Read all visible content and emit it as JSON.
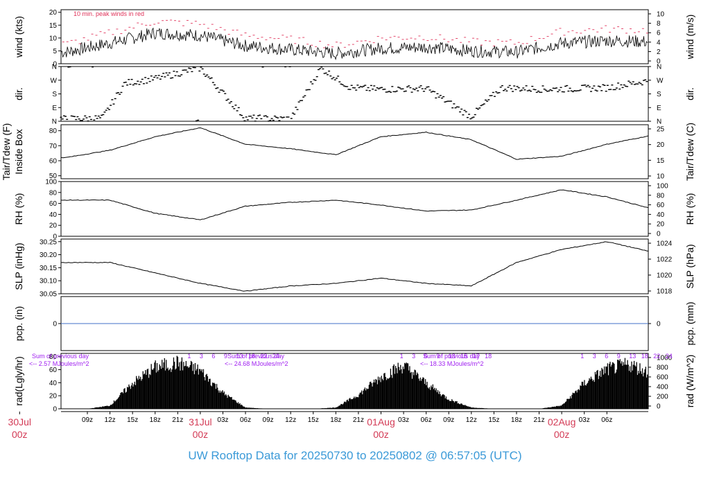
{
  "title": "UW Rooftop Data for 20250730  to  20250802 @ 06:57:05  (UTC)",
  "colors": {
    "trace": "#000000",
    "peak": "#e0335a",
    "date": "#d33a55",
    "sun": "#a020f0",
    "zero": "#3f6fc8",
    "title": "#3b9ad8"
  },
  "chart_data": [
    {
      "type": "line",
      "name": "wind",
      "ylabel_left": "wind (kts)",
      "ylabel_right": "wind (m/s)",
      "annotation": "10 min. peak winds in red",
      "left_ticks": [
        "0",
        "5",
        "10",
        "15",
        "20"
      ],
      "right_ticks": [
        "0",
        "2",
        "4",
        "6",
        "8",
        "10"
      ],
      "ylim": [
        0,
        21
      ],
      "x_hours": [
        0,
        6,
        12,
        18,
        24,
        30,
        36,
        42,
        48,
        54,
        60,
        66,
        72,
        78,
        84,
        90
      ],
      "values": [
        6,
        4.5,
        8,
        12,
        11,
        7,
        5.5,
        4,
        6,
        6.5,
        5,
        4.5,
        8,
        9,
        8.5,
        6
      ],
      "peak_values": [
        9,
        7.5,
        12,
        16.5,
        15.5,
        11,
        9.5,
        7,
        10,
        10.5,
        8.5,
        8,
        12.5,
        13.5,
        13,
        9
      ]
    },
    {
      "type": "scatter",
      "name": "dir",
      "ylabel_left": "dir.",
      "ylabel_right": "dir.",
      "left_ticks": [
        "N",
        "E",
        "S",
        "W",
        "N"
      ],
      "right_ticks": [
        "N",
        "E",
        "S",
        "W",
        "N"
      ],
      "ylim": [
        0,
        360
      ],
      "x_hours": [
        0,
        6,
        11,
        14,
        18,
        24,
        30,
        36,
        40,
        44,
        48,
        54,
        60,
        64,
        70,
        78,
        84,
        88
      ],
      "values": [
        20,
        15,
        20,
        250,
        280,
        350,
        20,
        15,
        350,
        220,
        210,
        215,
        30,
        220,
        210,
        220,
        270,
        20
      ]
    },
    {
      "type": "line",
      "name": "temperature",
      "ylabel_left": "Tair/Tdew (F)",
      "ylabel_left2": "Inside Box",
      "ylabel_right": "Tair/Tdew (C)",
      "left_ticks": [
        "50",
        "60",
        "70",
        "80"
      ],
      "right_ticks": [
        "10",
        "15",
        "20",
        "25"
      ],
      "ylim": [
        48,
        84
      ],
      "x_hours": [
        0,
        6,
        12,
        18,
        24,
        30,
        36,
        42,
        48,
        54,
        60,
        66,
        72,
        78,
        84,
        90
      ],
      "values": [
        66,
        62,
        67,
        76,
        82,
        71,
        68,
        64,
        76,
        79,
        74,
        61,
        63,
        71,
        77,
        69
      ]
    },
    {
      "type": "line",
      "name": "rh",
      "ylabel_left": "RH (%)",
      "ylabel_right": "RH (%)",
      "left_ticks": [
        "0",
        "20",
        "40",
        "60",
        "80",
        "100"
      ],
      "right_ticks": [
        "0",
        "20",
        "40",
        "60",
        "80",
        "100"
      ],
      "ylim": [
        0,
        100
      ],
      "x_hours": [
        0,
        6,
        12,
        18,
        24,
        30,
        36,
        42,
        48,
        54,
        60,
        66,
        72,
        78,
        84,
        90
      ],
      "values": [
        60,
        66,
        66,
        42,
        30,
        55,
        62,
        66,
        57,
        46,
        48,
        66,
        85,
        72,
        50,
        60
      ]
    },
    {
      "type": "line",
      "name": "slp",
      "ylabel_left": "SLP (inHg)",
      "ylabel_right": "SLP (hPa)",
      "left_ticks": [
        "30.05",
        "30.10",
        "30.15",
        "30.20",
        "30.25"
      ],
      "right_ticks": [
        "1018",
        "1020",
        "1022",
        "1024"
      ],
      "ylim": [
        30.05,
        30.26
      ],
      "x_hours": [
        0,
        6,
        12,
        18,
        24,
        30,
        36,
        42,
        48,
        54,
        60,
        66,
        72,
        78,
        84,
        90
      ],
      "values": [
        30.16,
        30.17,
        30.17,
        30.13,
        30.09,
        30.06,
        30.08,
        30.09,
        30.11,
        30.09,
        30.08,
        30.17,
        30.22,
        30.25,
        30.21,
        30.24
      ]
    },
    {
      "type": "line",
      "name": "precip",
      "ylabel_left": "pcp. (in)",
      "ylabel_right": "pcp. (mm)",
      "left_ticks": [
        "0"
      ],
      "right_ticks": [
        "0"
      ],
      "ylim": [
        0,
        1
      ],
      "x_hours": [
        0,
        90
      ],
      "values": [
        0,
        0
      ]
    },
    {
      "type": "area",
      "name": "radiation",
      "ylabel_left": "rad(Lgly/hr)",
      "ylabel_right": "rad (W/m^2)",
      "left_ticks": [
        "0",
        "20",
        "40",
        "60",
        "80"
      ],
      "right_ticks": [
        "0",
        "200",
        "400",
        "600",
        "800",
        "1000"
      ],
      "ylim": [
        0,
        85
      ],
      "x_hours": [
        0,
        3,
        6,
        9,
        12,
        15,
        18,
        21,
        24,
        27,
        30,
        33,
        36,
        39,
        42,
        45,
        48,
        51,
        54,
        57,
        60,
        63,
        66,
        69,
        72,
        75,
        78,
        81,
        84,
        87,
        90
      ],
      "values": [
        0,
        0,
        0,
        0,
        5,
        40,
        65,
        72,
        60,
        25,
        2,
        0,
        0,
        0,
        2,
        22,
        50,
        68,
        40,
        15,
        2,
        0,
        0,
        0,
        5,
        40,
        62,
        70,
        55,
        20,
        0
      ],
      "hour_labels": [
        "1",
        "3",
        "6",
        "9",
        "13",
        "18",
        "22",
        "24"
      ],
      "hour_labels_day2": [
        "1",
        "3",
        "6",
        "9",
        "13",
        "15",
        "17",
        "18"
      ],
      "sums": [
        {
          "line1": "Sum of previous day",
          "line2": "<-- 2.57 MJoules/m^2"
        },
        {
          "line1": "Sum of previous day",
          "line2": "<-- 24.68 MJoules/m^2"
        },
        {
          "line1": "Sum of previous day",
          "line2": "<-- 18.33 MJoules/m^2"
        }
      ]
    }
  ],
  "x_axis": {
    "hour_ticks": [
      "09z",
      "12z",
      "15z",
      "18z",
      "21z",
      "03z",
      "06z",
      "09z",
      "12z",
      "15z",
      "18z",
      "21z",
      "03z",
      "06z",
      "09z",
      "12z",
      "15z",
      "18z",
      "21z",
      "03z",
      "06z"
    ],
    "date_labels": [
      {
        "date": "30Jul",
        "hour": "00z"
      },
      {
        "date": "31Jul",
        "hour": "00z"
      },
      {
        "date": "01Aug",
        "hour": "00z"
      },
      {
        "date": "02Aug",
        "hour": "00z"
      }
    ]
  }
}
